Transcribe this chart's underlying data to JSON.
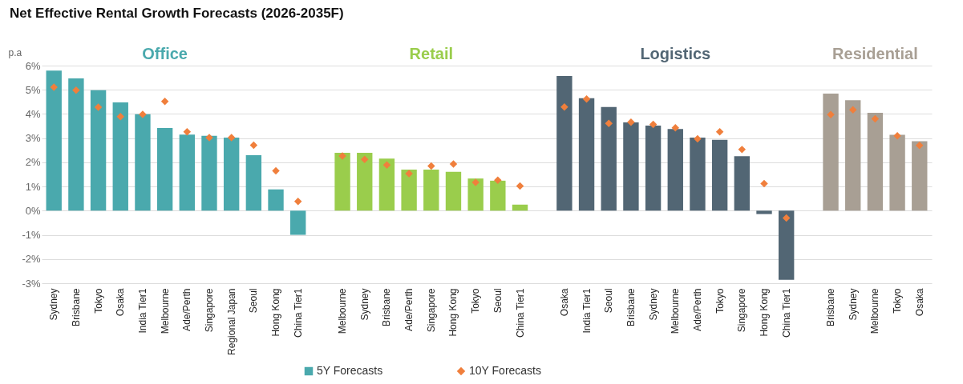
{
  "chart_data": {
    "type": "bar",
    "title": "Net Effective Rental Growth Forecasts (2026-2035F)",
    "ylabel": "p.a",
    "annotations": [
      "Office",
      "Retail",
      "Logistics",
      "Residential"
    ],
    "categories": [
      "Sydney",
      "Brisbane",
      "Tokyo",
      "Osaka",
      "India Tier1",
      "Melbourne",
      "Ade/Perth",
      "Singapore",
      "Regional Japan",
      "Seoul",
      "Hong Kong",
      "China Tier1",
      null,
      "Melbourne",
      "Sydney",
      "Brisbane",
      "Ade/Perth",
      "Singapore",
      "Hong Kong",
      "Tokyo",
      "Seoul",
      "China Tier1",
      null,
      "Osaka",
      "India Tier1",
      "Seoul",
      "Brisbane",
      "Sydney",
      "Melbourne",
      "Ade/Perth",
      "Tokyo",
      "Singapore",
      "Hong Kong",
      "China Tier1",
      null,
      "Brisbane",
      "Sydney",
      "Melbourne",
      "Tokyo",
      "Osaka"
    ],
    "series": [
      {
        "name": "5Y Forecasts",
        "values": [
          5.79,
          5.47,
          4.98,
          4.48,
          3.99,
          3.42,
          3.15,
          3.1,
          3.02,
          2.29,
          0.88,
          -1.0,
          null,
          2.39,
          2.39,
          2.15,
          1.7,
          1.7,
          1.61,
          1.33,
          1.24,
          0.25,
          null,
          5.57,
          4.65,
          4.29,
          3.65,
          3.52,
          3.38,
          3.02,
          2.93,
          2.25,
          -0.14,
          -2.86,
          null,
          4.84,
          4.57,
          4.05,
          3.14,
          2.87
        ],
        "colors": [
          "#4aa9ad",
          "#4aa9ad",
          "#4aa9ad",
          "#4aa9ad",
          "#4aa9ad",
          "#4aa9ad",
          "#4aa9ad",
          "#4aa9ad",
          "#4aa9ad",
          "#4aa9ad",
          "#4aa9ad",
          "#4aa9ad",
          null,
          "#9acd4c",
          "#9acd4c",
          "#9acd4c",
          "#9acd4c",
          "#9acd4c",
          "#9acd4c",
          "#9acd4c",
          "#9acd4c",
          "#9acd4c",
          null,
          "#526674",
          "#526674",
          "#526674",
          "#526674",
          "#526674",
          "#526674",
          "#526674",
          "#526674",
          "#526674",
          "#526674",
          "#526674",
          null,
          "#a89f94",
          "#a89f94",
          "#a89f94",
          "#a89f94",
          "#a89f94"
        ]
      },
      {
        "name": "10Y Forecasts",
        "type": "scatter",
        "marker": "diamond",
        "color": "#f07f3c",
        "values": [
          5.11,
          4.98,
          4.28,
          3.89,
          3.98,
          4.52,
          3.26,
          3.02,
          3.02,
          2.71,
          1.65,
          0.38,
          null,
          2.26,
          2.12,
          1.89,
          1.53,
          1.85,
          1.93,
          1.17,
          1.26,
          1.02,
          null,
          4.29,
          4.62,
          3.61,
          3.66,
          3.57,
          3.43,
          2.97,
          3.26,
          2.53,
          1.12,
          -0.3,
          null,
          3.97,
          4.17,
          3.8,
          3.1,
          2.7
        ]
      }
    ],
    "ylim": [
      -3,
      6
    ],
    "yticks": [
      {
        "value": -3,
        "label": "-3%"
      },
      {
        "value": -2,
        "label": "-2%"
      },
      {
        "value": -1,
        "label": "-1%"
      },
      {
        "value": 0,
        "label": "0%"
      },
      {
        "value": 1,
        "label": "1%"
      },
      {
        "value": 2,
        "label": "2%"
      },
      {
        "value": 3,
        "label": "3%"
      },
      {
        "value": 4,
        "label": "4%"
      },
      {
        "value": 5,
        "label": "5%"
      },
      {
        "value": 6,
        "label": "6%"
      }
    ],
    "grid": "y",
    "legend": "bottom"
  }
}
